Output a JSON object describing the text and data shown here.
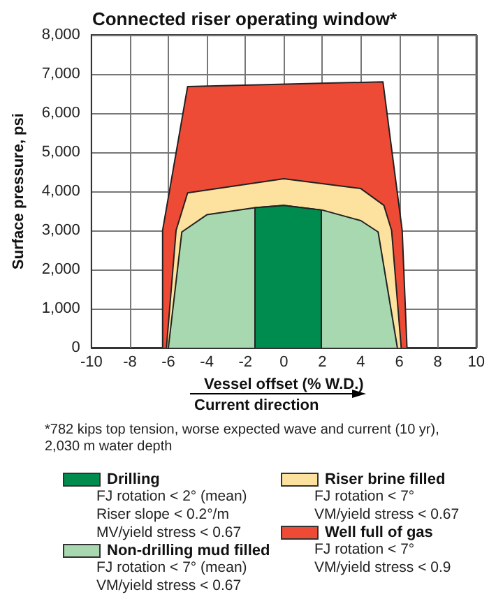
{
  "chart_data": {
    "type": "area",
    "title": "Connected riser operating window*",
    "xlabel": "Vessel offset (% W.D.)",
    "ylabel": "Surface pressure, psi",
    "annotations": [
      "Current direction",
      "*782 kips top tension, worse expected wave and current (10 yr), 2,030 m water depth",
      "FJ rotation < 2° (mean)\nRiser slope < 0.2°/m\nMV/yield stress < 0.67",
      "FJ rotation < 7° (mean)\nVM/yield stress < 0.67",
      "FJ rotation < 7°\nVM/yield stress < 0.67",
      "FJ rotation < 7°\nVM/yield stress < 0.9"
    ],
    "series": [
      {
        "name": "Drilling",
        "color": "#008c4f",
        "x": [
          -1.5,
          -1.5,
          0,
          1.95,
          1.95
        ],
        "values": [
          0,
          3580,
          3640,
          3520,
          0
        ]
      },
      {
        "name": "Non-drilling mud filled",
        "color": "#a8d8b0",
        "x": [
          -6.0,
          -5.3,
          -4.0,
          -1.5,
          0,
          2.0,
          4.0,
          4.9,
          5.9
        ],
        "values": [
          0,
          2960,
          3400,
          3580,
          3640,
          3520,
          3250,
          2960,
          0
        ]
      },
      {
        "name": "Riser brine filled",
        "color": "#fde19e",
        "x": [
          -6.1,
          -5.6,
          -5.0,
          0,
          4.0,
          5.2,
          5.6,
          6.1
        ],
        "values": [
          0,
          3000,
          3960,
          4320,
          4070,
          3640,
          3000,
          0
        ]
      },
      {
        "name": "Well full of gas",
        "color": "#ee4b36",
        "x": [
          -6.3,
          -6.3,
          -5.0,
          5.15,
          6.15,
          6.4
        ],
        "values": [
          0,
          3000,
          6680,
          6800,
          3000,
          0
        ]
      }
    ],
    "xlim": [
      -10,
      10
    ],
    "xticks": [
      -10,
      -8,
      -6,
      -4,
      -2,
      0,
      2,
      4,
      6,
      8,
      10
    ],
    "ylim": [
      0,
      8000
    ],
    "yticks": [
      0,
      {
        "value": 1000,
        "label": "1,000"
      },
      {
        "value": 2000,
        "label": "2,000"
      },
      {
        "value": 3000,
        "label": "3,000"
      },
      {
        "value": 4000,
        "label": "4,000"
      },
      {
        "value": 5000,
        "label": "5,000"
      },
      {
        "value": 6000,
        "label": "6,000"
      },
      {
        "value": 7000,
        "label": "7,000"
      },
      {
        "value": 8000,
        "label": "8,000"
      }
    ],
    "grid": true,
    "legend": "bottom"
  }
}
